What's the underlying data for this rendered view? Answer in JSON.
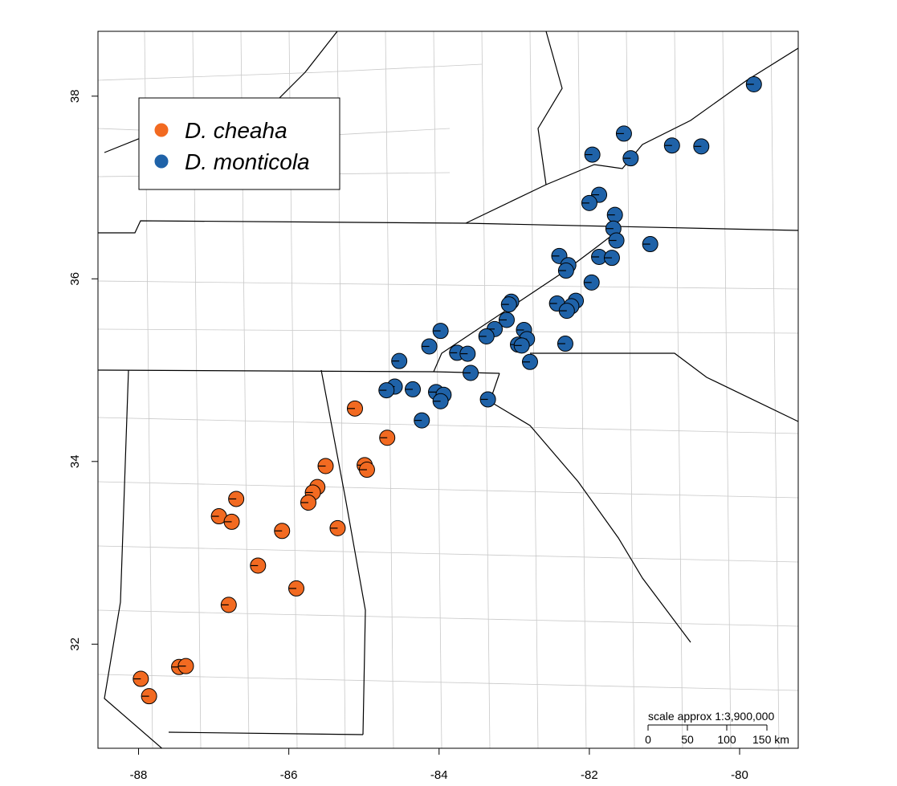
{
  "chart_data": {
    "type": "scatter",
    "xlim": [
      -88.54,
      -79.22
    ],
    "ylim": [
      30.86,
      38.71
    ],
    "xticks": [
      -88,
      -86,
      -84,
      -82,
      -80
    ],
    "yticks": [
      32,
      34,
      36,
      38
    ],
    "legend": "top-left",
    "series": [
      {
        "name": "D. cheaha",
        "color": "#f26a21",
        "x": [
          -85.12,
          -84.69,
          -84.99,
          -84.96,
          -85.51,
          -85.62,
          -85.68,
          -85.74,
          -86.7,
          -86.93,
          -86.76,
          -85.35,
          -86.09,
          -86.41,
          -85.9,
          -86.8,
          -87.46,
          -87.37,
          -87.97,
          -87.86
        ],
        "values": [
          34.58,
          34.26,
          33.96,
          33.91,
          33.95,
          33.72,
          33.66,
          33.55,
          33.59,
          33.4,
          33.34,
          33.27,
          33.24,
          32.86,
          32.61,
          32.43,
          31.75,
          31.76,
          31.62,
          31.43
        ]
      },
      {
        "name": "D. monticola",
        "color": "#1f62a8",
        "x": [
          -79.81,
          -81.54,
          -81.96,
          -81.45,
          -80.9,
          -80.51,
          -81.87,
          -82.0,
          -81.66,
          -81.68,
          -81.64,
          -81.19,
          -82.4,
          -81.87,
          -81.7,
          -82.28,
          -82.31,
          -81.97,
          -83.04,
          -83.07,
          -82.43,
          -82.18,
          -82.24,
          -82.3,
          -83.1,
          -83.98,
          -83.26,
          -83.37,
          -82.87,
          -82.83,
          -82.95,
          -82.9,
          -82.32,
          -84.13,
          -83.76,
          -83.62,
          -84.53,
          -82.79,
          -83.58,
          -84.59,
          -84.7,
          -84.35,
          -84.04,
          -83.94,
          -83.98,
          -83.35,
          -84.23
        ],
        "values": [
          38.13,
          37.59,
          37.36,
          37.32,
          37.46,
          37.45,
          36.92,
          36.83,
          36.7,
          36.55,
          36.42,
          36.38,
          36.25,
          36.24,
          36.23,
          36.15,
          36.09,
          35.96,
          35.75,
          35.72,
          35.73,
          35.76,
          35.7,
          35.65,
          35.55,
          35.43,
          35.45,
          35.37,
          35.44,
          35.34,
          35.28,
          35.27,
          35.29,
          35.26,
          35.19,
          35.18,
          35.1,
          35.09,
          34.97,
          34.82,
          34.78,
          34.79,
          34.76,
          34.73,
          34.66,
          34.68,
          34.45
        ]
      }
    ]
  },
  "scale_bar": {
    "label": "scale approx 1:3,900,000",
    "ticks": [
      "0",
      "50",
      "100",
      "150 km"
    ]
  }
}
